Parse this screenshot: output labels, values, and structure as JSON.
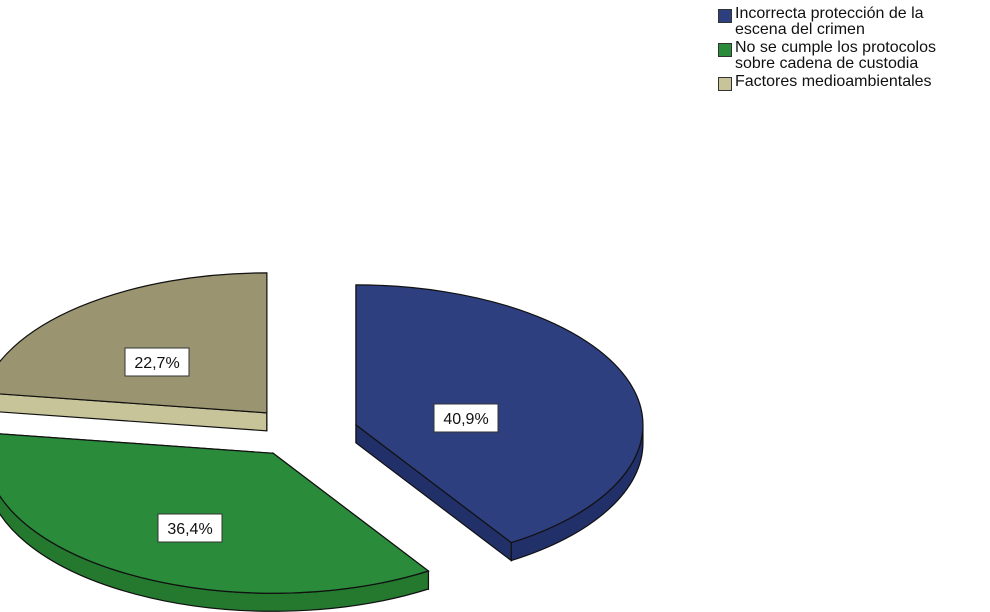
{
  "chart_data": {
    "type": "pie",
    "style": "3d-exploded",
    "slices": [
      {
        "label": "Incorrecta protección de la\nescena del crimen",
        "value": 40.9,
        "display": "40,9%",
        "color": "#2e3f80",
        "side_color": "#22306a"
      },
      {
        "label": "No se cumple los protocolos\nsobre cadena de custodia",
        "value": 36.4,
        "display": "36,4%",
        "color": "#2a8c3a",
        "side_color": "#24792f"
      },
      {
        "label": "Factores medioambientales",
        "value": 22.7,
        "display": "22,7%",
        "color": "#9a9470",
        "side_color": "#c8c49a"
      }
    ],
    "legend_position": "top-right"
  }
}
